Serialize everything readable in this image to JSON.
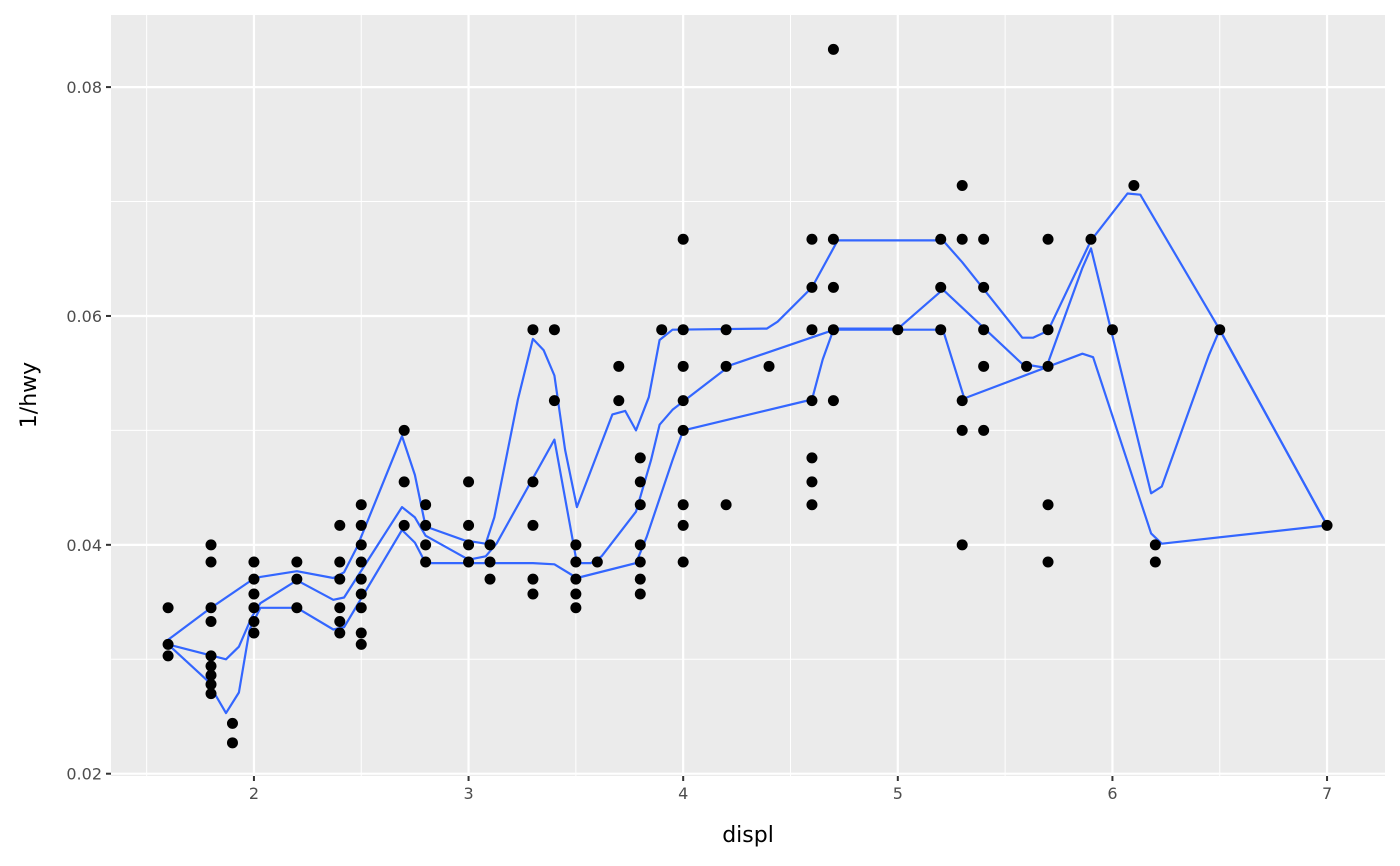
{
  "chart_data": {
    "type": "scatter",
    "title": "",
    "xlabel": "displ",
    "ylabel": "1/hwy",
    "xlim": [
      1.334,
      7.27
    ],
    "ylim": [
      0.0198,
      0.0863
    ],
    "grid": true,
    "x_ticks": [
      2,
      3,
      4,
      5,
      6,
      7
    ],
    "x_tick_labels": [
      "2",
      "3",
      "4",
      "5",
      "6",
      "7"
    ],
    "y_ticks": [
      0.02,
      0.04,
      0.06,
      0.08
    ],
    "y_tick_labels": [
      "0.02",
      "0.04",
      "0.06",
      "0.08"
    ],
    "colors": {
      "panel": "#EBEBEB",
      "grid": "#FFFFFF",
      "points": "#000000",
      "lines": "#3366FF"
    },
    "points": [
      [
        1.6,
        0.0345
      ],
      [
        1.6,
        0.0313
      ],
      [
        1.6,
        0.0303
      ],
      [
        1.8,
        0.04
      ],
      [
        1.8,
        0.0385
      ],
      [
        1.8,
        0.0345
      ],
      [
        1.8,
        0.0333
      ],
      [
        1.8,
        0.0303
      ],
      [
        1.8,
        0.0294
      ],
      [
        1.8,
        0.0286
      ],
      [
        1.8,
        0.0278
      ],
      [
        1.8,
        0.027
      ],
      [
        1.9,
        0.0244
      ],
      [
        1.9,
        0.0227
      ],
      [
        2.0,
        0.0385
      ],
      [
        2.0,
        0.037
      ],
      [
        2.0,
        0.0357
      ],
      [
        2.0,
        0.0345
      ],
      [
        2.0,
        0.0333
      ],
      [
        2.0,
        0.0323
      ],
      [
        2.2,
        0.0385
      ],
      [
        2.2,
        0.037
      ],
      [
        2.2,
        0.0345
      ],
      [
        2.4,
        0.0417
      ],
      [
        2.4,
        0.0385
      ],
      [
        2.4,
        0.037
      ],
      [
        2.4,
        0.0345
      ],
      [
        2.4,
        0.0333
      ],
      [
        2.4,
        0.0323
      ],
      [
        2.5,
        0.0435
      ],
      [
        2.5,
        0.0417
      ],
      [
        2.5,
        0.04
      ],
      [
        2.5,
        0.0385
      ],
      [
        2.5,
        0.037
      ],
      [
        2.5,
        0.0357
      ],
      [
        2.5,
        0.0345
      ],
      [
        2.5,
        0.0323
      ],
      [
        2.5,
        0.0313
      ],
      [
        2.7,
        0.05
      ],
      [
        2.7,
        0.0455
      ],
      [
        2.7,
        0.0417
      ],
      [
        2.8,
        0.0435
      ],
      [
        2.8,
        0.0417
      ],
      [
        2.8,
        0.04
      ],
      [
        2.8,
        0.0385
      ],
      [
        3.0,
        0.0455
      ],
      [
        3.0,
        0.0417
      ],
      [
        3.0,
        0.04
      ],
      [
        3.0,
        0.0385
      ],
      [
        3.1,
        0.04
      ],
      [
        3.1,
        0.0385
      ],
      [
        3.1,
        0.037
      ],
      [
        3.3,
        0.0588
      ],
      [
        3.3,
        0.0455
      ],
      [
        3.3,
        0.0417
      ],
      [
        3.3,
        0.037
      ],
      [
        3.3,
        0.0357
      ],
      [
        3.4,
        0.0588
      ],
      [
        3.4,
        0.0526
      ],
      [
        3.5,
        0.04
      ],
      [
        3.5,
        0.0385
      ],
      [
        3.5,
        0.037
      ],
      [
        3.5,
        0.0357
      ],
      [
        3.5,
        0.0345
      ],
      [
        3.6,
        0.0385
      ],
      [
        3.7,
        0.0556
      ],
      [
        3.7,
        0.0526
      ],
      [
        3.8,
        0.0476
      ],
      [
        3.8,
        0.0455
      ],
      [
        3.8,
        0.0435
      ],
      [
        3.8,
        0.04
      ],
      [
        3.8,
        0.0385
      ],
      [
        3.8,
        0.037
      ],
      [
        3.8,
        0.0357
      ],
      [
        3.9,
        0.0588
      ],
      [
        4.0,
        0.0667
      ],
      [
        4.0,
        0.0588
      ],
      [
        4.0,
        0.0556
      ],
      [
        4.0,
        0.0526
      ],
      [
        4.0,
        0.05
      ],
      [
        4.0,
        0.0435
      ],
      [
        4.0,
        0.0417
      ],
      [
        4.0,
        0.0385
      ],
      [
        4.2,
        0.0588
      ],
      [
        4.2,
        0.0556
      ],
      [
        4.2,
        0.0435
      ],
      [
        4.4,
        0.0556
      ],
      [
        4.6,
        0.0667
      ],
      [
        4.6,
        0.0625
      ],
      [
        4.6,
        0.0588
      ],
      [
        4.6,
        0.0526
      ],
      [
        4.6,
        0.0476
      ],
      [
        4.6,
        0.0455
      ],
      [
        4.6,
        0.0435
      ],
      [
        4.7,
        0.0833
      ],
      [
        4.7,
        0.0667
      ],
      [
        4.7,
        0.0625
      ],
      [
        4.7,
        0.0588
      ],
      [
        4.7,
        0.0526
      ],
      [
        5.0,
        0.0588
      ],
      [
        5.2,
        0.0667
      ],
      [
        5.2,
        0.0625
      ],
      [
        5.2,
        0.0588
      ],
      [
        5.3,
        0.0714
      ],
      [
        5.3,
        0.0667
      ],
      [
        5.3,
        0.0526
      ],
      [
        5.3,
        0.05
      ],
      [
        5.3,
        0.04
      ],
      [
        5.4,
        0.0667
      ],
      [
        5.4,
        0.0625
      ],
      [
        5.4,
        0.0588
      ],
      [
        5.4,
        0.0556
      ],
      [
        5.4,
        0.05
      ],
      [
        5.6,
        0.0556
      ],
      [
        5.7,
        0.0667
      ],
      [
        5.7,
        0.0588
      ],
      [
        5.7,
        0.0556
      ],
      [
        5.7,
        0.0435
      ],
      [
        5.7,
        0.0385
      ],
      [
        5.9,
        0.0667
      ],
      [
        6.0,
        0.0588
      ],
      [
        6.1,
        0.0714
      ],
      [
        6.2,
        0.04
      ],
      [
        6.2,
        0.0385
      ],
      [
        6.5,
        0.0588
      ],
      [
        7.0,
        0.0417
      ]
    ],
    "lines": [
      [
        [
          1.6,
          0.0317
        ],
        [
          1.8,
          0.0345
        ],
        [
          1.98,
          0.0368
        ],
        [
          2.03,
          0.0372
        ],
        [
          2.2,
          0.0377
        ],
        [
          2.37,
          0.0371
        ],
        [
          2.42,
          0.0376
        ],
        [
          2.48,
          0.0398
        ],
        [
          2.69,
          0.0495
        ],
        [
          2.75,
          0.0461
        ],
        [
          2.8,
          0.0416
        ],
        [
          2.98,
          0.0404
        ],
        [
          3.08,
          0.0401
        ],
        [
          3.12,
          0.0424
        ],
        [
          3.23,
          0.0527
        ],
        [
          3.3,
          0.058
        ],
        [
          3.35,
          0.057
        ],
        [
          3.4,
          0.0548
        ],
        [
          3.45,
          0.0483
        ],
        [
          3.505,
          0.0433
        ],
        [
          3.67,
          0.0514
        ],
        [
          3.73,
          0.0517
        ],
        [
          3.78,
          0.05
        ],
        [
          3.84,
          0.0529
        ],
        [
          3.89,
          0.0579
        ],
        [
          3.95,
          0.0588
        ],
        [
          4.39,
          0.0589
        ],
        [
          4.44,
          0.0595
        ],
        [
          4.6,
          0.0625
        ],
        [
          4.72,
          0.0666
        ],
        [
          5.21,
          0.0666
        ],
        [
          5.3,
          0.0647
        ],
        [
          5.58,
          0.0581
        ],
        [
          5.63,
          0.0581
        ],
        [
          5.7,
          0.0587
        ],
        [
          5.9,
          0.0666
        ],
        [
          6.07,
          0.0707
        ],
        [
          6.13,
          0.0706
        ],
        [
          6.5,
          0.0588
        ],
        [
          7.0,
          0.0417
        ]
      ],
      [
        [
          1.6,
          0.0313
        ],
        [
          1.87,
          0.03
        ],
        [
          1.93,
          0.0311
        ],
        [
          1.99,
          0.0337
        ],
        [
          2.03,
          0.0349
        ],
        [
          2.2,
          0.0369
        ],
        [
          2.37,
          0.0352
        ],
        [
          2.42,
          0.0354
        ],
        [
          2.69,
          0.0433
        ],
        [
          2.75,
          0.0424
        ],
        [
          2.8,
          0.0408
        ],
        [
          3.0,
          0.0387
        ],
        [
          3.08,
          0.039
        ],
        [
          3.13,
          0.0401
        ],
        [
          3.4,
          0.0492
        ],
        [
          3.505,
          0.0384
        ],
        [
          3.57,
          0.0384
        ],
        [
          3.62,
          0.039
        ],
        [
          3.78,
          0.0429
        ],
        [
          3.85,
          0.0474
        ],
        [
          3.89,
          0.0505
        ],
        [
          3.95,
          0.0518
        ],
        [
          4.22,
          0.0557
        ],
        [
          4.72,
          0.0589
        ],
        [
          5.0,
          0.0589
        ],
        [
          5.02,
          0.0592
        ],
        [
          5.21,
          0.0623
        ],
        [
          5.58,
          0.0558
        ],
        [
          5.68,
          0.0555
        ],
        [
          5.7,
          0.0559
        ],
        [
          5.86,
          0.0642
        ],
        [
          5.9,
          0.0659
        ],
        [
          6.18,
          0.0445
        ],
        [
          6.23,
          0.0451
        ],
        [
          6.45,
          0.0566
        ],
        [
          6.5,
          0.0588
        ],
        [
          7.0,
          0.0417
        ]
      ],
      [
        [
          1.6,
          0.0313
        ],
        [
          1.78,
          0.0282
        ],
        [
          1.87,
          0.0253
        ],
        [
          1.93,
          0.0271
        ],
        [
          1.98,
          0.0326
        ],
        [
          2.03,
          0.0345
        ],
        [
          2.2,
          0.0345
        ],
        [
          2.37,
          0.0326
        ],
        [
          2.42,
          0.0328
        ],
        [
          2.69,
          0.0413
        ],
        [
          2.75,
          0.0402
        ],
        [
          2.8,
          0.0384
        ],
        [
          3.3,
          0.0384
        ],
        [
          3.4,
          0.0383
        ],
        [
          3.505,
          0.0371
        ],
        [
          3.78,
          0.0384
        ],
        [
          3.83,
          0.0407
        ],
        [
          3.95,
          0.0474
        ],
        [
          4.0,
          0.05
        ],
        [
          4.6,
          0.0527
        ],
        [
          4.65,
          0.0562
        ],
        [
          4.7,
          0.0588
        ],
        [
          5.21,
          0.0588
        ],
        [
          5.31,
          0.0528
        ],
        [
          5.86,
          0.0567
        ],
        [
          5.91,
          0.0564
        ],
        [
          6.18,
          0.041
        ],
        [
          6.23,
          0.0401
        ],
        [
          7.0,
          0.0417
        ]
      ]
    ]
  }
}
